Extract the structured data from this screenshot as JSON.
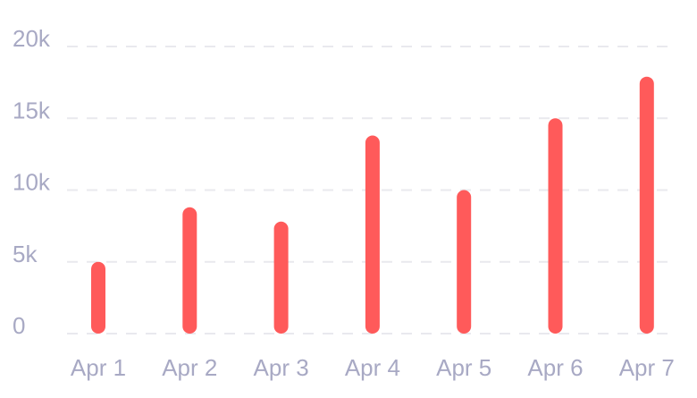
{
  "chart_data": {
    "type": "bar",
    "categories": [
      "Apr 1",
      "Apr 2",
      "Apr 3",
      "Apr 4",
      "Apr 5",
      "Apr 6",
      "Apr 7"
    ],
    "values": [
      5000,
      8800,
      7800,
      13800,
      10000,
      15000,
      17900
    ],
    "title": "",
    "xlabel": "",
    "ylabel": "",
    "ylim": [
      0,
      20000
    ],
    "y_ticks": [
      0,
      5000,
      10000,
      15000,
      20000
    ],
    "y_tick_labels": [
      "0",
      "5k",
      "10k",
      "15k",
      "20k"
    ],
    "grid": true,
    "bar_color": "#ff5a5a"
  }
}
